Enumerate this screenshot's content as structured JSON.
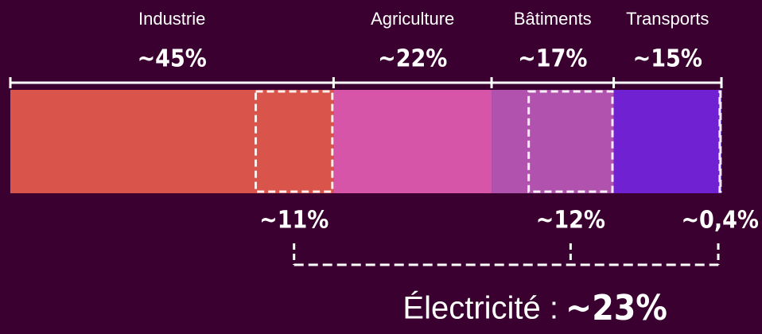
{
  "chart_data": {
    "type": "stacked-bar",
    "categories": [
      "Industrie",
      "Agriculture",
      "Bâtiments",
      "Transports"
    ],
    "values": [
      45,
      22,
      17,
      15
    ],
    "value_labels": [
      "~45%",
      "~22%",
      "~17%",
      "~15%"
    ],
    "colors": [
      "#d9544a",
      "#d655a8",
      "#b152ae",
      "#7021d2"
    ],
    "electricity": {
      "label": "Électricité :",
      "values": [
        11,
        null,
        12,
        0.4
      ],
      "value_labels": [
        "~11%",
        null,
        "~12%",
        "~0,4%"
      ],
      "total": 23,
      "total_label": "~23%"
    }
  }
}
